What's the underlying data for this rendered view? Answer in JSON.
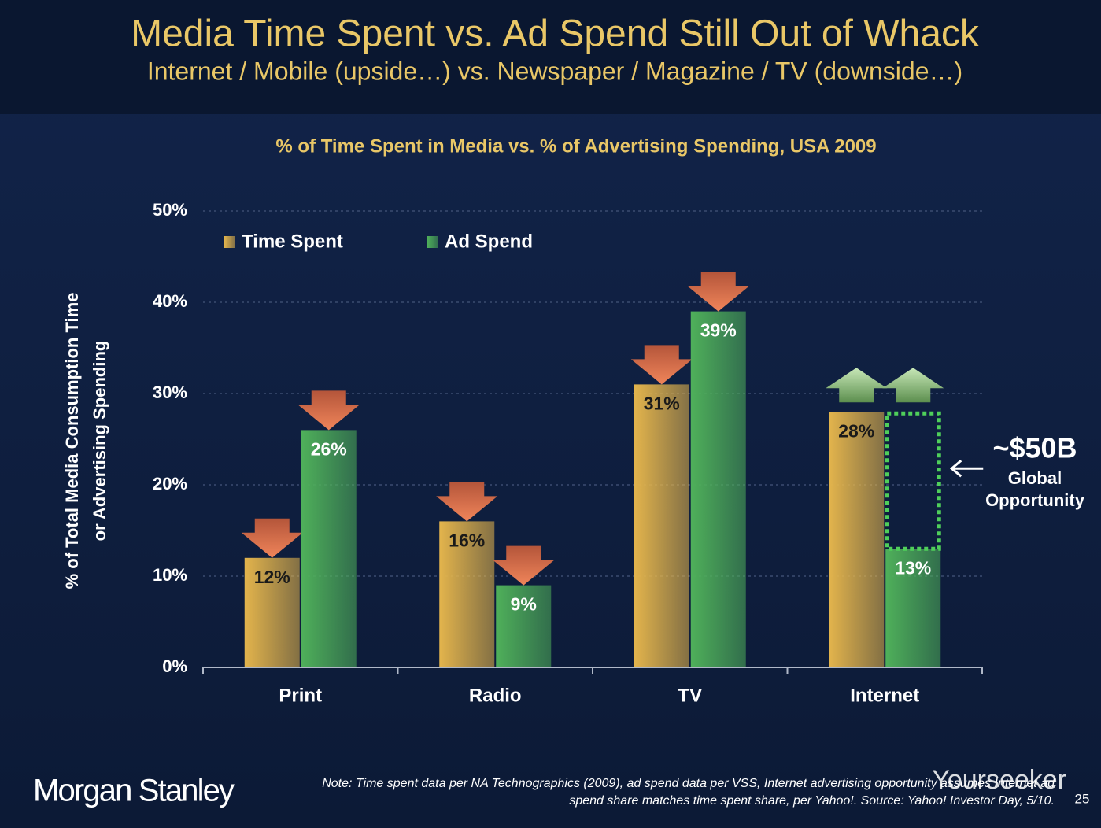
{
  "header": {
    "title": "Media Time Spent vs. Ad Spend Still Out of Whack",
    "subtitle": "Internet / Mobile (upside…) vs. Newspaper / Magazine / TV (downside…)"
  },
  "chart_data": {
    "type": "bar",
    "title": "% of Time Spent in Media vs. % of Advertising Spending, USA 2009",
    "y_label": [
      "% of Total Media Consumption Time",
      "or Advertising Spending"
    ],
    "categories": [
      "Print",
      "Radio",
      "TV",
      "Internet"
    ],
    "series": [
      {
        "name": "Time Spent",
        "color": "#e3b44c",
        "values": [
          12,
          16,
          31,
          28
        ],
        "value_labels": [
          "12%",
          "16%",
          "31%",
          "28%"
        ],
        "label_color": "#1a1a1a"
      },
      {
        "name": "Ad Spend",
        "color": "#4fb05a",
        "values": [
          26,
          9,
          39,
          13
        ],
        "value_labels": [
          "26%",
          "9%",
          "39%",
          "13%"
        ],
        "label_color": "#ffffff"
      }
    ],
    "trend": [
      "down",
      "down",
      "down",
      "up"
    ],
    "ylim": [
      0,
      50
    ],
    "yticks": [
      {
        "value": 0,
        "label": "0%"
      },
      {
        "value": 10,
        "label": "10%"
      },
      {
        "value": 20,
        "label": "20%"
      },
      {
        "value": 30,
        "label": "30%"
      },
      {
        "value": 40,
        "label": "40%"
      },
      {
        "value": 50,
        "label": "50%"
      }
    ],
    "grid": true,
    "annotation": {
      "value": "~$50B",
      "label": [
        "Global",
        "Opportunity"
      ]
    }
  },
  "footer": {
    "brand": "Morgan Stanley",
    "note": [
      "Note: Time spent data per NA Technographics (2009), ad spend data per VSS, Internet advertising opportunity assumes Internet ad",
      "spend share matches time spent share, per Yahoo!. Source: Yahoo! Investor Day, 5/10."
    ],
    "watermark": "Yourseeker",
    "page": "25"
  }
}
